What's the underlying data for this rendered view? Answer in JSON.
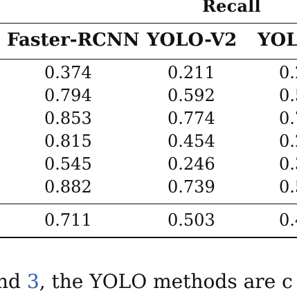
{
  "table": {
    "super_header": "Recall",
    "columns": [
      "Faster-RCNN",
      "YOLO-V2",
      "YOL"
    ],
    "rows": [
      [
        "0.374",
        "0.211",
        "0.2"
      ],
      [
        "0.794",
        "0.592",
        "0.5"
      ],
      [
        "0.853",
        "0.774",
        "0.7"
      ],
      [
        "0.815",
        "0.454",
        "0.2"
      ],
      [
        "0.545",
        "0.246",
        "0.3"
      ],
      [
        "0.882",
        "0.739",
        "0.5"
      ]
    ],
    "summary_row": [
      "0.711",
      "0.503",
      "0.4"
    ]
  },
  "caption": {
    "prefix": "nd ",
    "link": "3",
    "suffix": ", the YOLO methods are c"
  },
  "colors": {
    "text": "#111111",
    "link": "#2a5db0",
    "background": "#ffffff"
  }
}
